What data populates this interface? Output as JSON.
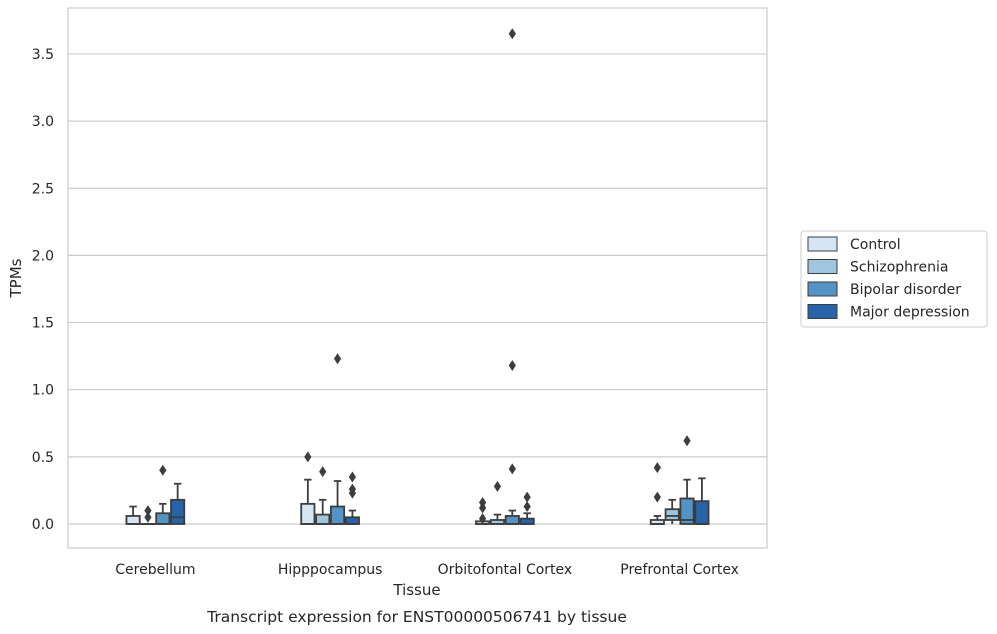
{
  "chart_data": {
    "type": "box",
    "xlabel": "Tissue",
    "ylabel": "TPMs",
    "caption": "Transcript expression for ENST00000506741 by tissue",
    "ylim": [
      -0.18,
      3.84
    ],
    "yticks": [
      "0.0",
      "0.5",
      "1.0",
      "1.5",
      "2.0",
      "2.5",
      "3.0",
      "3.5"
    ],
    "grid": true,
    "legend_position": "right",
    "categories": [
      "Cerebellum",
      "Hipppocampus",
      "Orbitofontal Cortex",
      "Prefrontal Cortex"
    ],
    "series": [
      {
        "name": "Control",
        "color": "#d6e5f4",
        "boxes": [
          {
            "min": 0.0,
            "q1": 0.0,
            "median": 0.0,
            "q3": 0.06,
            "max": 0.13,
            "outliers": []
          },
          {
            "min": 0.0,
            "q1": 0.0,
            "median": 0.0,
            "q3": 0.15,
            "max": 0.33,
            "outliers": [
              0.5
            ]
          },
          {
            "min": 0.0,
            "q1": 0.0,
            "median": 0.0,
            "q3": 0.02,
            "max": 0.02,
            "outliers": [
              0.04,
              0.12,
              0.16
            ]
          },
          {
            "min": 0.0,
            "q1": 0.0,
            "median": 0.0,
            "q3": 0.03,
            "max": 0.06,
            "outliers": [
              0.2,
              0.42
            ]
          }
        ]
      },
      {
        "name": "Schizophrenia",
        "color": "#9fc5df",
        "boxes": [
          {
            "min": 0.0,
            "q1": 0.0,
            "median": 0.0,
            "q3": 0.0,
            "max": 0.0,
            "outliers": [
              0.05,
              0.1
            ]
          },
          {
            "min": 0.0,
            "q1": 0.0,
            "median": 0.0,
            "q3": 0.07,
            "max": 0.18,
            "outliers": [
              0.39
            ]
          },
          {
            "min": 0.0,
            "q1": 0.0,
            "median": 0.0,
            "q3": 0.03,
            "max": 0.07,
            "outliers": [
              0.28
            ]
          },
          {
            "min": 0.0,
            "q1": 0.03,
            "median": 0.06,
            "q3": 0.11,
            "max": 0.18,
            "outliers": []
          }
        ]
      },
      {
        "name": "Bipolar disorder",
        "color": "#5394c4",
        "boxes": [
          {
            "min": 0.0,
            "q1": 0.0,
            "median": 0.0,
            "q3": 0.08,
            "max": 0.15,
            "outliers": [
              0.4
            ]
          },
          {
            "min": 0.0,
            "q1": 0.0,
            "median": 0.0,
            "q3": 0.13,
            "max": 0.32,
            "outliers": [
              1.23
            ]
          },
          {
            "min": 0.0,
            "q1": 0.0,
            "median": 0.0,
            "q3": 0.06,
            "max": 0.1,
            "outliers": [
              0.41,
              1.18,
              3.65
            ]
          },
          {
            "min": 0.0,
            "q1": 0.0,
            "median": 0.03,
            "q3": 0.19,
            "max": 0.33,
            "outliers": [
              0.62
            ]
          }
        ]
      },
      {
        "name": "Major depression",
        "color": "#2763a8",
        "boxes": [
          {
            "min": 0.0,
            "q1": 0.0,
            "median": 0.05,
            "q3": 0.18,
            "max": 0.3,
            "outliers": []
          },
          {
            "min": 0.0,
            "q1": 0.0,
            "median": 0.0,
            "q3": 0.05,
            "max": 0.1,
            "outliers": [
              0.23,
              0.26,
              0.35
            ]
          },
          {
            "min": 0.0,
            "q1": 0.0,
            "median": 0.0,
            "q3": 0.04,
            "max": 0.08,
            "outliers": [
              0.13,
              0.2
            ]
          },
          {
            "min": 0.0,
            "q1": 0.0,
            "median": 0.0,
            "q3": 0.17,
            "max": 0.34,
            "outliers": []
          }
        ]
      }
    ]
  }
}
